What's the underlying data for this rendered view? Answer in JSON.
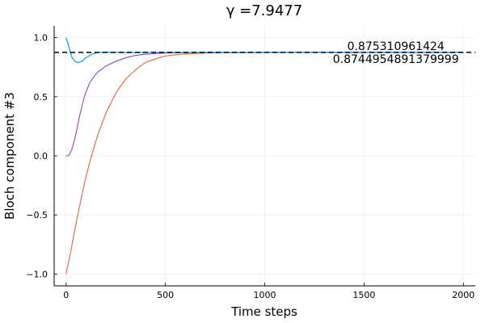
{
  "chart_data": {
    "type": "line",
    "title": "γ =7.9477",
    "xlabel": "Time steps",
    "ylabel": "Bloch component #3",
    "xlim": [
      -60,
      2060
    ],
    "ylim": [
      -1.1,
      1.1
    ],
    "xticks": [
      0,
      500,
      1000,
      1500,
      2000
    ],
    "xtick_labels": [
      "0",
      "500",
      "1000",
      "1500",
      "2000"
    ],
    "yticks": [
      -1.0,
      -0.5,
      0.0,
      0.5,
      1.0
    ],
    "ytick_labels": [
      "−1.0",
      "−0.5",
      "0.0",
      "0.5",
      "1.0"
    ],
    "grid": true,
    "legend": "none",
    "series": [
      {
        "color": "#009AFA",
        "x": [
          0,
          10,
          20,
          30,
          45,
          60,
          80,
          100,
          130,
          160,
          200,
          250,
          300,
          350,
          400,
          500,
          600,
          800,
          1000,
          1500,
          2000
        ],
        "values": [
          1.0,
          0.95,
          0.88,
          0.83,
          0.8,
          0.79,
          0.8,
          0.83,
          0.86,
          0.875,
          0.878,
          0.876,
          0.874,
          0.875,
          0.876,
          0.875,
          0.875,
          0.875,
          0.875,
          0.875,
          0.875
        ]
      },
      {
        "color": "#9558B2",
        "x": [
          0,
          10,
          20,
          30,
          40,
          50,
          60,
          70,
          80,
          90,
          100,
          120,
          140,
          160,
          200,
          250,
          300,
          350,
          400,
          450,
          500,
          600,
          700,
          800,
          1000,
          1500,
          2000
        ],
        "values": [
          0.0,
          0.0,
          0.02,
          0.06,
          0.12,
          0.19,
          0.27,
          0.35,
          0.42,
          0.49,
          0.54,
          0.62,
          0.67,
          0.71,
          0.76,
          0.8,
          0.83,
          0.85,
          0.86,
          0.865,
          0.87,
          0.873,
          0.875,
          0.875,
          0.875,
          0.875,
          0.875
        ]
      },
      {
        "color": "#E26F46",
        "x": [
          0,
          20,
          40,
          60,
          80,
          100,
          120,
          140,
          160,
          180,
          200,
          250,
          300,
          350,
          400,
          450,
          500,
          550,
          600,
          700,
          800,
          1000,
          1500,
          2000
        ],
        "values": [
          -1.0,
          -0.84,
          -0.66,
          -0.49,
          -0.33,
          -0.18,
          -0.05,
          0.07,
          0.18,
          0.27,
          0.36,
          0.53,
          0.65,
          0.73,
          0.79,
          0.82,
          0.845,
          0.855,
          0.862,
          0.87,
          0.873,
          0.875,
          0.875,
          0.875
        ]
      }
    ],
    "reference_line": {
      "y": 0.8753,
      "style": "dashed",
      "color": "#000000"
    },
    "annotations": [
      {
        "text": "0.875310961424",
        "x": 1660,
        "y": 0.8753,
        "valign": "bottom"
      },
      {
        "text": "0.8744954891379999",
        "x": 1660,
        "y": 0.8745,
        "valign": "top"
      }
    ]
  }
}
